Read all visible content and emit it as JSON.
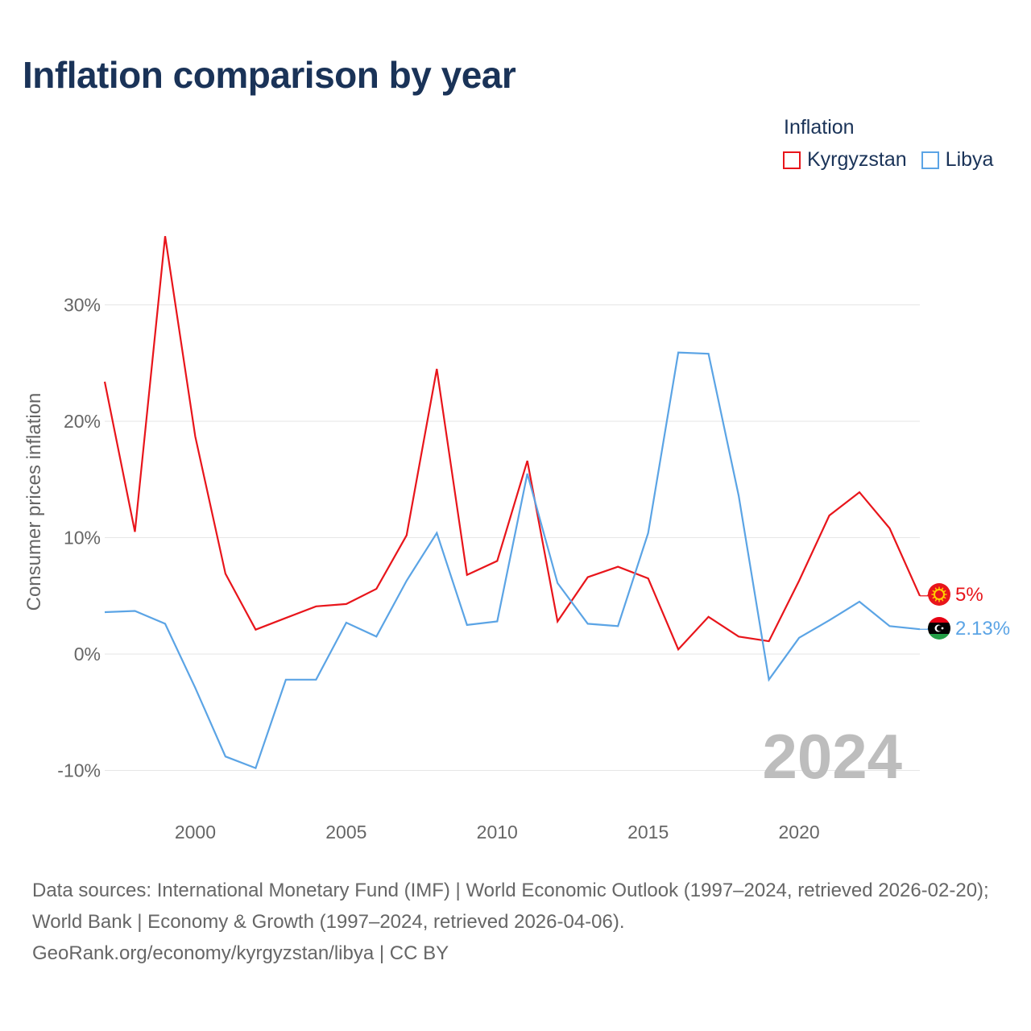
{
  "title": "Inflation comparison by year",
  "legend": {
    "title": "Inflation",
    "items": [
      {
        "label": "Kyrgyzstan",
        "color": "#e8151b"
      },
      {
        "label": "Libya",
        "color": "#5ba4e5"
      }
    ]
  },
  "source": {
    "line1": "Data sources: International Monetary Fund (IMF) | World Economic Outlook (1997–2024, retrieved 2026-02-20); World Bank | Economy & Growth (1997–2024, retrieved 2026-04-06).",
    "line2": "GeoRank.org/economy/kyrgyzstan/libya | CC BY"
  },
  "chart_data": {
    "type": "line",
    "title": "Inflation comparison by year",
    "xlabel": "",
    "ylabel": "Consumer prices inflation",
    "xlim": [
      1997,
      2024
    ],
    "ylim": [
      -12,
      37
    ],
    "x_ticks": [
      2000,
      2005,
      2010,
      2015,
      2020
    ],
    "y_ticks": [
      -10,
      0,
      10,
      20,
      30
    ],
    "y_tick_labels": [
      "-10%",
      "0%",
      "10%",
      "20%",
      "30%"
    ],
    "grid": true,
    "watermark_year": "2024",
    "x": [
      1997,
      1998,
      1999,
      2000,
      2001,
      2002,
      2003,
      2004,
      2005,
      2006,
      2007,
      2008,
      2009,
      2010,
      2011,
      2012,
      2013,
      2014,
      2015,
      2016,
      2017,
      2018,
      2019,
      2020,
      2021,
      2022,
      2023,
      2024
    ],
    "series": [
      {
        "name": "Kyrgyzstan",
        "color": "#e8151b",
        "end_label": "5%",
        "flag": "kyrgyzstan-flag",
        "values": [
          23.4,
          10.5,
          35.9,
          18.7,
          6.9,
          2.1,
          3.1,
          4.1,
          4.3,
          5.6,
          10.2,
          24.5,
          6.8,
          8.0,
          16.6,
          2.8,
          6.6,
          7.5,
          6.5,
          0.4,
          3.2,
          1.5,
          1.1,
          6.3,
          11.9,
          13.9,
          10.8,
          5.0
        ]
      },
      {
        "name": "Libya",
        "color": "#5ba4e5",
        "end_label": "2.13%",
        "flag": "libya-flag",
        "values": [
          3.6,
          3.7,
          2.6,
          -2.9,
          -8.8,
          -9.8,
          -2.2,
          -2.2,
          2.7,
          1.5,
          6.3,
          10.4,
          2.5,
          2.8,
          15.5,
          6.1,
          2.6,
          2.4,
          10.4,
          25.9,
          25.8,
          13.6,
          -2.2,
          1.4,
          2.9,
          4.5,
          2.4,
          2.13
        ]
      }
    ]
  }
}
